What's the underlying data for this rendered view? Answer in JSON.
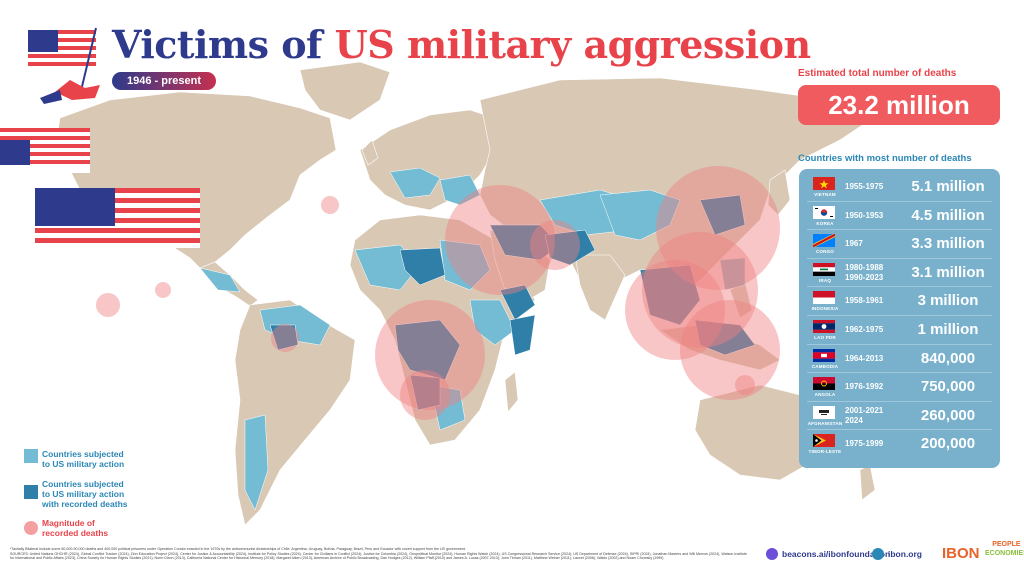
{
  "header": {
    "title_part1": "Victims of ",
    "title_part2": "US military aggression",
    "period": "1946 - present"
  },
  "estimate": {
    "label": "Estimated total number of deaths",
    "value": "23.2 million"
  },
  "ranking": {
    "label": "Countries with most number of deaths",
    "rows": [
      {
        "country": "VIETNAM",
        "years": "1955-1975",
        "deaths": "5.1 million",
        "flag": "vietnam"
      },
      {
        "country": "KOREA",
        "years": "1950-1953",
        "deaths": "4.5 million",
        "flag": "korea"
      },
      {
        "country": "CONGO",
        "years": "1967",
        "deaths": "3.3 million",
        "flag": "congo"
      },
      {
        "country": "IRAQ",
        "years": "1980-1988\n1990-2023",
        "deaths": "3.1 million",
        "flag": "iraq"
      },
      {
        "country": "INDONESIA",
        "years": "1958-1961",
        "deaths": "3 million",
        "flag": "indonesia"
      },
      {
        "country": "LAO PDR",
        "years": "1962-1975",
        "deaths": "1 million",
        "flag": "laos"
      },
      {
        "country": "CAMBODIA",
        "years": "1964-2013",
        "deaths": "840,000",
        "flag": "cambodia"
      },
      {
        "country": "ANGOLA",
        "years": "1976-1992",
        "deaths": "750,000",
        "flag": "angola"
      },
      {
        "country": "AFGHANISTAN",
        "years": "2001-2021\n2024",
        "deaths": "260,000",
        "flag": "afghanistan"
      },
      {
        "country": "TIMOR-LESTE",
        "years": "1975-1999",
        "deaths": "200,000",
        "flag": "timor"
      }
    ]
  },
  "legend": {
    "subjected": "Countries subjected\nto US military action",
    "recorded": "Countries subjected\nto US military action\nwith recorded deaths",
    "magnitude": "Magnitude of\nrecorded deaths"
  },
  "colors": {
    "land": "#d8c8b4",
    "subjected": "#73bcd3",
    "recorded": "#2f7fa8",
    "magnitude": "#f08080",
    "title_blue": "#2e3a8c",
    "title_red": "#e8434a"
  },
  "footer": {
    "note": "*Tactially Bilateral include some 80,000-90,000 deaths and 400,000 political prisoners under Operation Condor enacted in the 1970s by the anticommunist dictatorships of Chile, Argentina, Uruguay, Bolivia, Paraguay, Brazil, Peru and Ecuador with covert support from the US government.",
    "sources": "SOURCES: United Nations OHCHR (2024), Global Conflict Tracker (2024), Zinn Education Project (2024), Center for Justice & Accountability (2024), Institute for Policy Studies (2024), Center for Civilians in Conflict (2024), Justice for Colombia (2024), Geopolitical Monitor (2024), Human Rights Watch (2024), US Congressional Research Service (2024), US Department of Defense (2024), SIPRI (2024), Jonathan Masters and Will Merrow (2024), Watson Institute for International and Public Affairs (2023), China Society for Human Rights Studies (2021), Norm Dixon (2013), California National Center for Historical Memory (2018), Margaret Aiken (2013), American Archive of Public Broadcasting, Dan Hodges (2012), William Pfaff (2010) and James A. Lucas (2007-2013), John Tirman (2011), Matthew Weiner (2011), Lancet (2006), Waldo (2002) and Noam Chomsky (1999)",
    "social_beacons": "beacons.ai/ibonfoundation",
    "social_web": "ibon.org",
    "logo_ibon": "IBON",
    "logo_people": "PEOPLE",
    "logo_economies": "ECONOMIES"
  }
}
